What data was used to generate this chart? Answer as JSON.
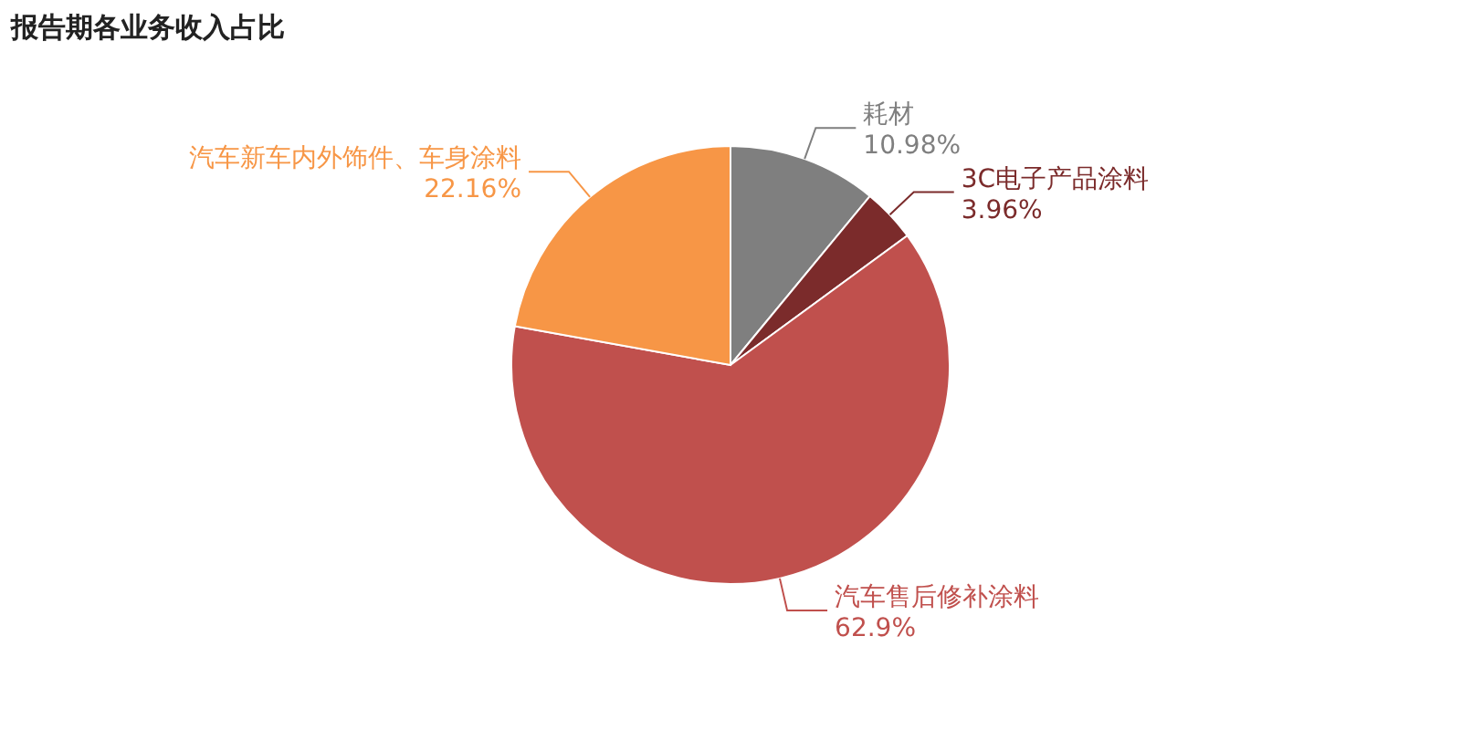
{
  "chart_data": {
    "type": "pie",
    "title": "报告期各业务收入占比",
    "categories": [
      "耗材",
      "3C电子产品涂料",
      "汽车售后修补涂料",
      "汽车新车内外饰件、车身涂料"
    ],
    "values": [
      10.98,
      3.96,
      62.9,
      22.16
    ],
    "colors": [
      "#7f7f7f",
      "#7b2b2b",
      "#c0504d",
      "#f79646"
    ],
    "value_labels": [
      "10.98%",
      "3.96%",
      "62.9%",
      "22.16%"
    ]
  }
}
